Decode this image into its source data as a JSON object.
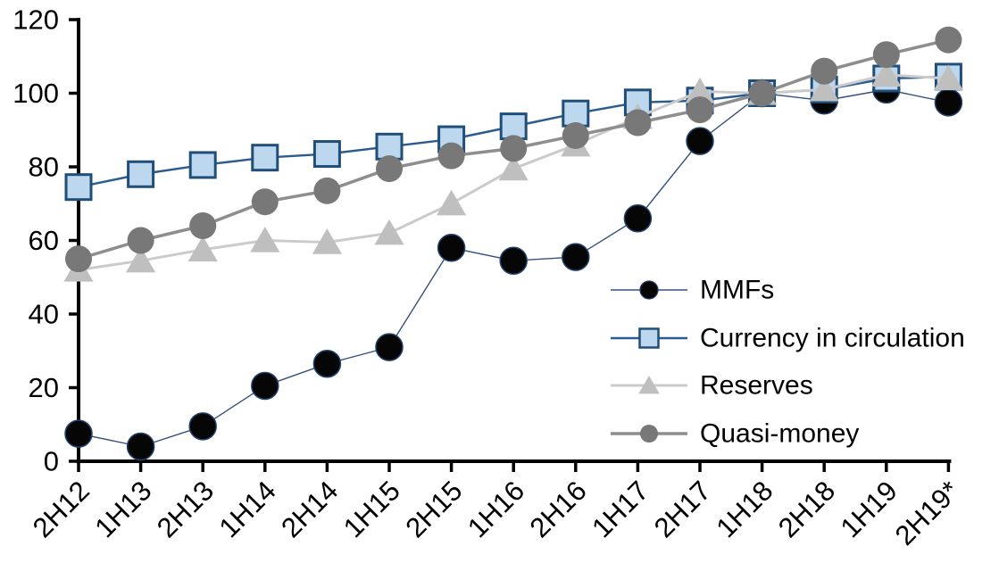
{
  "chart_data": {
    "type": "line",
    "title": "",
    "categories": [
      "2H12",
      "1H13",
      "2H13",
      "1H14",
      "2H14",
      "1H15",
      "2H15",
      "1H16",
      "2H16",
      "1H17",
      "2H17",
      "1H18",
      "2H18",
      "1H19",
      "2H19*"
    ],
    "series": [
      {
        "name": "MMFs",
        "marker": "circle",
        "marker_fill": "#060606",
        "marker_stroke": "#24426e",
        "line_color": "#35517e",
        "line_width": 1.4,
        "values": [
          7.5,
          4,
          9.5,
          20.5,
          26.5,
          31,
          58,
          54.5,
          55.5,
          66,
          87,
          100,
          98,
          101,
          97.5
        ]
      },
      {
        "name": "Currency in circulation",
        "marker": "square",
        "marker_fill": "#bdd7ee",
        "marker_stroke": "#1f4e79",
        "line_color": "#2c5c8f",
        "line_width": 2.5,
        "values": [
          74.5,
          78,
          80.5,
          82.5,
          83.5,
          85.5,
          87.5,
          91,
          94.5,
          97.5,
          98,
          100,
          101,
          104,
          104.5
        ]
      },
      {
        "name": "Reserves",
        "marker": "triangle",
        "marker_fill": "#bfbfbf",
        "marker_stroke": "none",
        "line_color": "#cbcbcb",
        "line_width": 3,
        "values": [
          52,
          54.5,
          57.5,
          60,
          59.5,
          62,
          70,
          79.5,
          86,
          93.5,
          100.5,
          100,
          101,
          105,
          104
        ]
      },
      {
        "name": "Quasi-money",
        "marker": "circle",
        "marker_fill": "#787878",
        "marker_stroke": "none",
        "line_color": "#8e8e8e",
        "line_width": 3.5,
        "values": [
          55,
          60,
          64,
          70.5,
          73.5,
          79.5,
          83,
          85,
          88.5,
          92,
          95.5,
          100,
          106,
          110.5,
          114.5
        ]
      }
    ],
    "y_axis": {
      "min": 0,
      "max": 120,
      "step": 20,
      "tick_labels": [
        "0",
        "20",
        "40",
        "60",
        "80",
        "100",
        "120"
      ]
    },
    "x_axis": {
      "tick_labels": [
        "2H12",
        "1H13",
        "2H13",
        "1H14",
        "2H14",
        "1H15",
        "2H15",
        "1H16",
        "2H16",
        "1H17",
        "2H17",
        "1H18",
        "2H18",
        "1H19",
        "2H19*"
      ],
      "label_rotation_deg": -45
    },
    "legend": {
      "position": "inside-right-middle",
      "entries": [
        "MMFs",
        "Currency in circulation",
        "Reserves",
        "Quasi-money"
      ]
    },
    "grid": "off",
    "axis_color": "#000000",
    "text_color": "#000000",
    "background": "#ffffff"
  }
}
